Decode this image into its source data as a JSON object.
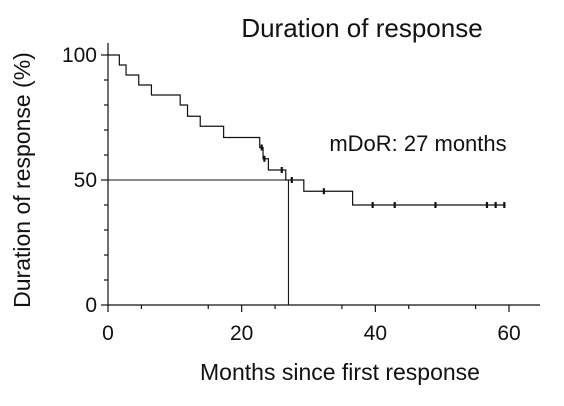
{
  "chart_data": {
    "type": "line",
    "title": "Duration of response",
    "xlabel": "Months since first response",
    "ylabel": "Duration of response (%)",
    "xlim": [
      0,
      65
    ],
    "ylim": [
      0,
      105
    ],
    "x_ticks": [
      0,
      20,
      40,
      60
    ],
    "y_ticks": [
      0,
      50,
      100
    ],
    "x_tick_labels": [
      "0",
      "20",
      "40",
      "60"
    ],
    "y_tick_labels": [
      "0",
      "50",
      "100"
    ],
    "grid": false,
    "annotation": "mDoR: 27 months",
    "median": {
      "x": 27,
      "y": 50
    },
    "series": [
      {
        "style": "step",
        "x": [
          0,
          1.7,
          2.7,
          4.6,
          6.5,
          10.8,
          11.9,
          13.8,
          17.3,
          22.7,
          23.2,
          24.0,
          26.6,
          29.3,
          36.6,
          59.5
        ],
        "y": [
          100,
          96,
          92,
          88,
          84,
          80,
          75.5,
          71.5,
          67,
          63,
          58.5,
          54,
          50,
          45.5,
          40,
          40
        ]
      }
    ],
    "censored": {
      "x": [
        23.0,
        23.4,
        26.0,
        27.5,
        32.3,
        39.6,
        42.9,
        49.0,
        56.7,
        58.0,
        59.3
      ],
      "y": [
        63,
        58.5,
        54,
        50,
        45.5,
        40,
        40,
        40,
        40,
        40,
        40
      ]
    }
  }
}
